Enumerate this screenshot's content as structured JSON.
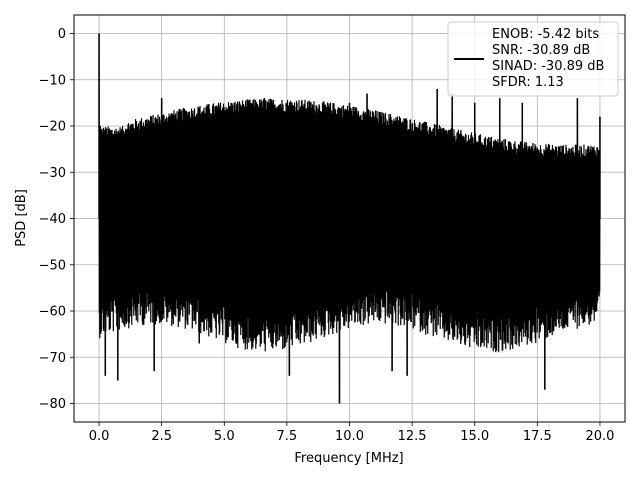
{
  "chart_data": {
    "type": "line",
    "xlabel": "Frequency [MHz]",
    "ylabel": "PSD [dB]",
    "xlim": [
      -1.0,
      21.0
    ],
    "ylim": [
      -84,
      4
    ],
    "xticks": [
      0.0,
      2.5,
      5.0,
      7.5,
      10.0,
      12.5,
      15.0,
      17.5,
      20.0
    ],
    "xtick_labels": [
      "0.0",
      "2.5",
      "5.0",
      "7.5",
      "10.0",
      "12.5",
      "15.0",
      "17.5",
      "20.0"
    ],
    "yticks": [
      0,
      -10,
      -20,
      -30,
      -40,
      -50,
      -60,
      -70,
      -80
    ],
    "ytick_labels": [
      "0",
      "−10",
      "−20",
      "−30",
      "−40",
      "−50",
      "−60",
      "−70",
      "−80"
    ],
    "grid": true,
    "legend_position": "top-right",
    "series": [
      {
        "color": "#000000",
        "description": "dense noise spectrum",
        "points": [
          {
            "x": 0.0,
            "y": 0.0
          },
          {
            "x": 0.02,
            "y": -42
          },
          {
            "x": 0.05,
            "y": -20
          },
          {
            "x": 0.25,
            "y": -74
          },
          {
            "x": 0.5,
            "y": -22
          },
          {
            "x": 0.75,
            "y": -75
          },
          {
            "x": 1.0,
            "y": -23
          },
          {
            "x": 2.2,
            "y": -73
          },
          {
            "x": 2.5,
            "y": -14
          },
          {
            "x": 4.0,
            "y": -67
          },
          {
            "x": 5.0,
            "y": -18
          },
          {
            "x": 6.6,
            "y": -14
          },
          {
            "x": 7.6,
            "y": -74
          },
          {
            "x": 8.7,
            "y": -16
          },
          {
            "x": 9.6,
            "y": -80
          },
          {
            "x": 10.0,
            "y": -15
          },
          {
            "x": 10.7,
            "y": -13
          },
          {
            "x": 11.7,
            "y": -73
          },
          {
            "x": 12.3,
            "y": -74
          },
          {
            "x": 13.5,
            "y": -12
          },
          {
            "x": 14.1,
            "y": -13
          },
          {
            "x": 15.0,
            "y": -15
          },
          {
            "x": 16.0,
            "y": -14
          },
          {
            "x": 16.9,
            "y": -15
          },
          {
            "x": 17.8,
            "y": -77
          },
          {
            "x": 19.1,
            "y": -14
          },
          {
            "x": 20.0,
            "y": -18
          }
        ]
      }
    ],
    "legend": {
      "lines": [
        "ENOB: -5.42 bits",
        "SNR: -30.89 dB",
        "SINAD: -30.89 dB",
        "SFDR: 1.13"
      ]
    }
  }
}
